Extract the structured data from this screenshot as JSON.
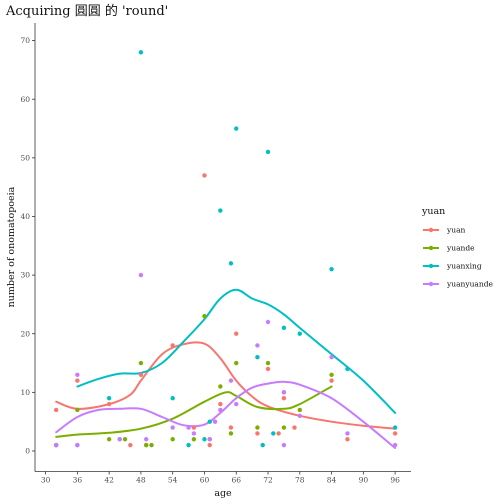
{
  "chart_data": {
    "type": "scatter",
    "title": "Acquiring 圓圓 的 'round'",
    "xlabel": "age",
    "ylabel": "number of onomatopoeia",
    "xlim": [
      28,
      99
    ],
    "ylim": [
      -3.5,
      73
    ],
    "x_ticks": [
      30,
      36,
      42,
      48,
      54,
      60,
      66,
      72,
      78,
      84,
      90,
      96
    ],
    "y_ticks": [
      0,
      10,
      20,
      30,
      40,
      50,
      60,
      70
    ],
    "grid": false,
    "legend": {
      "title": "yuan",
      "placement": "right"
    },
    "smoother": "loess",
    "series": [
      {
        "name": "yuan",
        "color": "#F8766D",
        "points": [
          [
            32,
            7
          ],
          [
            36,
            12
          ],
          [
            42,
            8
          ],
          [
            46,
            1
          ],
          [
            48,
            13
          ],
          [
            49,
            1
          ],
          [
            54,
            18
          ],
          [
            58,
            4
          ],
          [
            60,
            47
          ],
          [
            61,
            1
          ],
          [
            63,
            8
          ],
          [
            65,
            4
          ],
          [
            66,
            20
          ],
          [
            70,
            3
          ],
          [
            72,
            14
          ],
          [
            74,
            3
          ],
          [
            75,
            10
          ],
          [
            75,
            9
          ],
          [
            77,
            4
          ],
          [
            84,
            12
          ],
          [
            87,
            2
          ],
          [
            96,
            3
          ]
        ],
        "smooth": [
          [
            32,
            8.4
          ],
          [
            36,
            7.2
          ],
          [
            42,
            8.0
          ],
          [
            46,
            9.6
          ],
          [
            48,
            12.0
          ],
          [
            52,
            16.5
          ],
          [
            56,
            18.2
          ],
          [
            60,
            18.3
          ],
          [
            63,
            15.8
          ],
          [
            66,
            12.0
          ],
          [
            69,
            9.3
          ],
          [
            72,
            7.6
          ],
          [
            78,
            6.0
          ],
          [
            84,
            5.0
          ],
          [
            90,
            4.3
          ],
          [
            96,
            3.8
          ]
        ]
      },
      {
        "name": "yuande",
        "color": "#7CAE00",
        "points": [
          [
            32,
            1
          ],
          [
            36,
            7
          ],
          [
            42,
            2
          ],
          [
            45,
            2
          ],
          [
            48,
            15
          ],
          [
            49,
            1
          ],
          [
            50,
            1
          ],
          [
            54,
            2
          ],
          [
            58,
            2
          ],
          [
            60,
            23
          ],
          [
            61,
            2
          ],
          [
            63,
            11
          ],
          [
            65,
            3
          ],
          [
            66,
            15
          ],
          [
            70,
            4
          ],
          [
            72,
            15
          ],
          [
            75,
            4
          ],
          [
            78,
            7
          ],
          [
            84,
            13
          ]
        ],
        "smooth": [
          [
            32,
            2.4
          ],
          [
            36,
            2.8
          ],
          [
            42,
            3.1
          ],
          [
            48,
            3.8
          ],
          [
            54,
            5.5
          ],
          [
            60,
            8.4
          ],
          [
            64,
            10.0
          ],
          [
            66,
            9.4
          ],
          [
            70,
            7.5
          ],
          [
            75,
            7.2
          ],
          [
            78,
            8.0
          ],
          [
            84,
            11.0
          ]
        ]
      },
      {
        "name": "yuanxing",
        "color": "#00BFC4",
        "points": [
          [
            32,
            1
          ],
          [
            36,
            1
          ],
          [
            42,
            9
          ],
          [
            44,
            2
          ],
          [
            48,
            68
          ],
          [
            54,
            9
          ],
          [
            57,
            1
          ],
          [
            60,
            2
          ],
          [
            61,
            5
          ],
          [
            63,
            41
          ],
          [
            65,
            32
          ],
          [
            66,
            55
          ],
          [
            70,
            16
          ],
          [
            71,
            1
          ],
          [
            72,
            51
          ],
          [
            73,
            3
          ],
          [
            75,
            21
          ],
          [
            78,
            20
          ],
          [
            84,
            31
          ],
          [
            87,
            14
          ],
          [
            96,
            4
          ]
        ],
        "smooth": [
          [
            36,
            11
          ],
          [
            40,
            12.3
          ],
          [
            44,
            13.2
          ],
          [
            48,
            13.3
          ],
          [
            52,
            15.0
          ],
          [
            56,
            18.6
          ],
          [
            60,
            22.5
          ],
          [
            63,
            26.0
          ],
          [
            66,
            27.5
          ],
          [
            69,
            26.0
          ],
          [
            72,
            25.0
          ],
          [
            75,
            23.3
          ],
          [
            78,
            21.0
          ],
          [
            84,
            16.5
          ],
          [
            90,
            12.0
          ],
          [
            96,
            6.5
          ]
        ]
      },
      {
        "name": "yuanyuande",
        "color": "#C77CFF",
        "points": [
          [
            32,
            1
          ],
          [
            36,
            13
          ],
          [
            36,
            1
          ],
          [
            44,
            2
          ],
          [
            48,
            30
          ],
          [
            49,
            2
          ],
          [
            54,
            4
          ],
          [
            57,
            4
          ],
          [
            58,
            3
          ],
          [
            61,
            2
          ],
          [
            62,
            5
          ],
          [
            63,
            7
          ],
          [
            65,
            12
          ],
          [
            66,
            8
          ],
          [
            70,
            18
          ],
          [
            72,
            22
          ],
          [
            75,
            10
          ],
          [
            75,
            1
          ],
          [
            78,
            6
          ],
          [
            84,
            16
          ],
          [
            87,
            3
          ],
          [
            96,
            1
          ]
        ],
        "smooth": [
          [
            32,
            3.2
          ],
          [
            36,
            5.8
          ],
          [
            40,
            7.0
          ],
          [
            44,
            7.2
          ],
          [
            48,
            7.2
          ],
          [
            52,
            5.8
          ],
          [
            56,
            4.4
          ],
          [
            60,
            4.5
          ],
          [
            63,
            6.5
          ],
          [
            66,
            9.0
          ],
          [
            69,
            10.8
          ],
          [
            72,
            11.5
          ],
          [
            75,
            11.8
          ],
          [
            78,
            11.3
          ],
          [
            84,
            9.0
          ],
          [
            90,
            5.0
          ],
          [
            96,
            0.5
          ]
        ]
      }
    ]
  }
}
